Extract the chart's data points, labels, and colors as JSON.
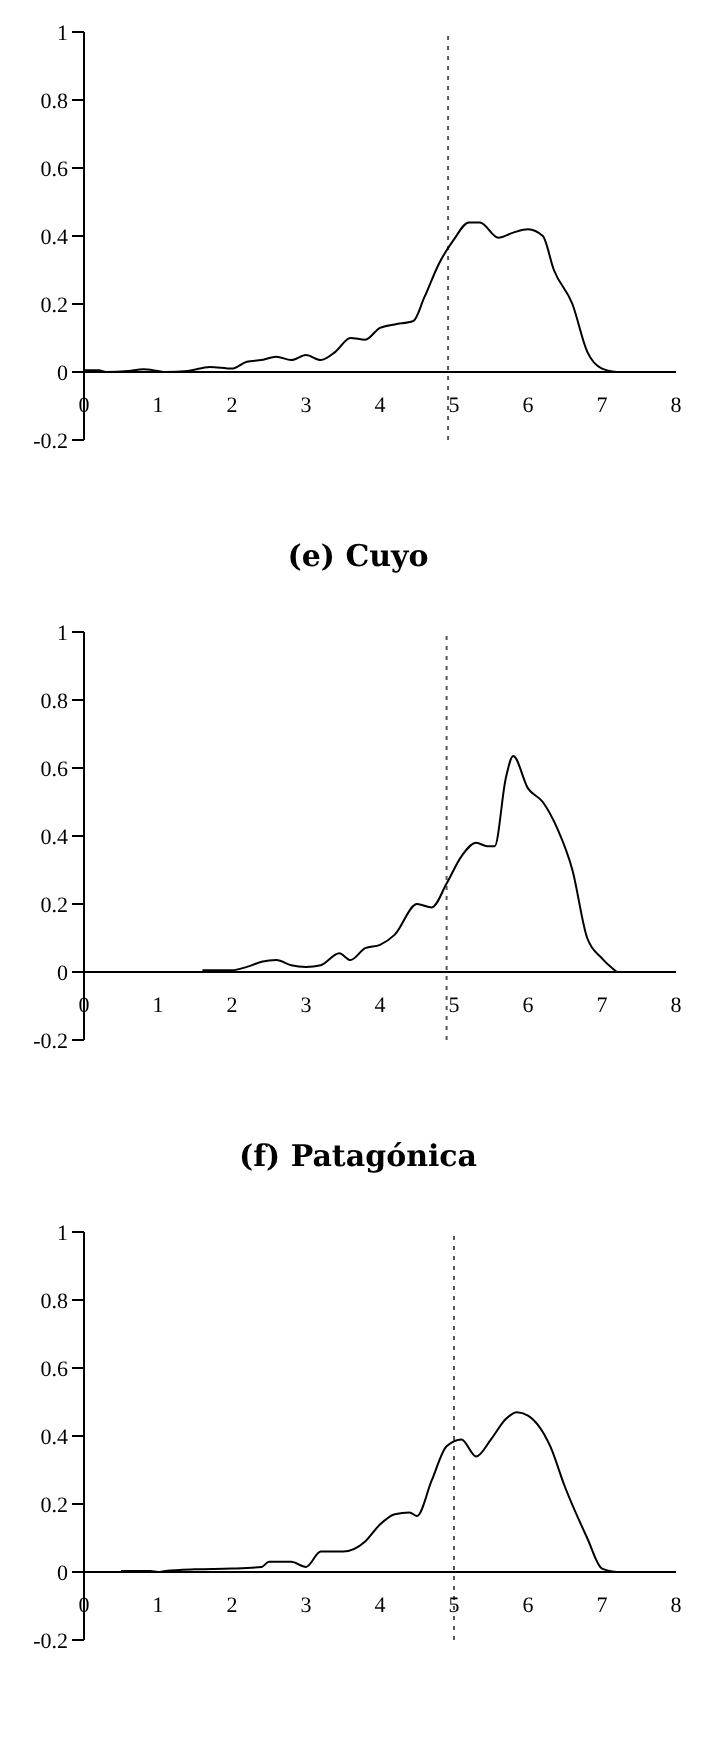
{
  "chart_data": [
    {
      "type": "line",
      "title": "(e) Cuyo",
      "xlim": [
        0,
        8
      ],
      "xticks": [
        0,
        1,
        2,
        3,
        4,
        5,
        6,
        7,
        8
      ],
      "ylim": [
        -0.2,
        1
      ],
      "yticks": [
        -0.2,
        0,
        0.2,
        0.4,
        0.6,
        0.8,
        1
      ],
      "marker": "none",
      "ref_lines": [
        {
          "axis": "x",
          "value": 4.92,
          "color": "#555555",
          "line_style": "dotted"
        }
      ],
      "series": [
        {
          "color": "#000000",
          "x": [
            0,
            0.2,
            0.3,
            0.6,
            0.8,
            1,
            1.1,
            1.4,
            1.7,
            2,
            2.2,
            2.4,
            2.6,
            2.8,
            3,
            3.2,
            3.4,
            3.6,
            3.8,
            4,
            4.2,
            4.45,
            4.6,
            4.8,
            5,
            5.2,
            5.35,
            5.6,
            5.8,
            6,
            6.2,
            6.35,
            6.6,
            6.8,
            7,
            7.2
          ],
          "values": [
            0.005,
            0.005,
            0,
            0.003,
            0.008,
            0.003,
            0,
            0.003,
            0.015,
            0.01,
            0.03,
            0.035,
            0.045,
            0.035,
            0.05,
            0.035,
            0.06,
            0.1,
            0.095,
            0.13,
            0.14,
            0.15,
            0.22,
            0.32,
            0.39,
            0.44,
            0.44,
            0.395,
            0.41,
            0.42,
            0.4,
            0.3,
            0.2,
            0.06,
            0.01,
            0
          ]
        }
      ]
    },
    {
      "type": "line",
      "title": "(f) Patagónica",
      "xlim": [
        0,
        8
      ],
      "xticks": [
        0,
        1,
        2,
        3,
        4,
        5,
        6,
        7,
        8
      ],
      "ylim": [
        -0.2,
        1
      ],
      "yticks": [
        -0.2,
        0,
        0.2,
        0.4,
        0.6,
        0.8,
        1
      ],
      "marker": "none",
      "ref_lines": [
        {
          "axis": "x",
          "value": 4.9,
          "color": "#555555",
          "line_style": "dotted"
        }
      ],
      "series": [
        {
          "color": "#000000",
          "x": [
            1.6,
            2,
            2.2,
            2.4,
            2.6,
            2.8,
            3,
            3.2,
            3.45,
            3.6,
            3.8,
            4,
            4.2,
            4.5,
            4.7,
            4.9,
            5.1,
            5.3,
            5.45,
            5.55,
            5.7,
            5.8,
            6,
            6.2,
            6.4,
            6.6,
            6.8,
            7,
            7.2
          ],
          "values": [
            0.005,
            0.005,
            0.015,
            0.03,
            0.035,
            0.02,
            0.015,
            0.02,
            0.055,
            0.035,
            0.07,
            0.08,
            0.11,
            0.2,
            0.19,
            0.26,
            0.34,
            0.38,
            0.37,
            0.37,
            0.57,
            0.635,
            0.54,
            0.5,
            0.42,
            0.3,
            0.1,
            0.04,
            0
          ]
        }
      ]
    },
    {
      "type": "line",
      "xlim": [
        0,
        8
      ],
      "xticks": [
        0,
        1,
        2,
        3,
        4,
        5,
        6,
        7,
        8
      ],
      "ylim": [
        -0.2,
        1
      ],
      "yticks": [
        -0.2,
        0,
        0.2,
        0.4,
        0.6,
        0.8,
        1
      ],
      "marker": "none",
      "ref_lines": [
        {
          "axis": "x",
          "value": 5,
          "color": "#555555",
          "line_style": "dotted"
        }
      ],
      "series": [
        {
          "color": "#000000",
          "x": [
            0.5,
            0.9,
            1,
            1.1,
            1.5,
            2,
            2.4,
            2.5,
            2.8,
            3,
            3.2,
            3.5,
            3.8,
            4,
            4.2,
            4.4,
            4.5,
            4.7,
            4.9,
            5.1,
            5.3,
            5.5,
            5.7,
            5.85,
            6,
            6.3,
            6.5,
            6.8,
            7,
            7.2
          ],
          "values": [
            0.003,
            0.003,
            0,
            0.003,
            0.008,
            0.01,
            0.015,
            0.03,
            0.03,
            0.015,
            0.06,
            0.06,
            0.09,
            0.14,
            0.17,
            0.175,
            0.165,
            0.27,
            0.37,
            0.39,
            0.34,
            0.39,
            0.45,
            0.47,
            0.46,
            0.37,
            0.25,
            0.1,
            0.01,
            0
          ]
        }
      ]
    }
  ]
}
